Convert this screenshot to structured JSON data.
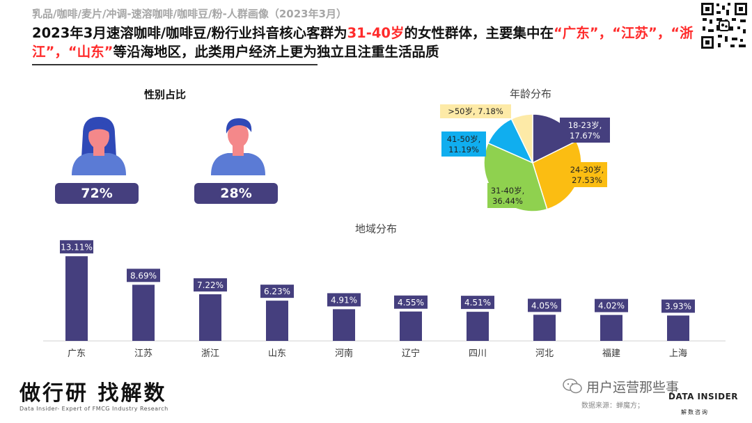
{
  "header": {
    "category_title": "乳品/咖啡/麦片/冲调-速溶咖啡/咖啡豆/粉-人群画像（2023年3月）",
    "headline_parts": [
      {
        "text": "2023年3月速溶咖啡/咖啡豆/粉行业抖音核心客群为",
        "highlight": false
      },
      {
        "text": "31-40岁",
        "highlight": true
      },
      {
        "text": "的女性群体，主要集中在",
        "highlight": false
      },
      {
        "text": "“广东”，",
        "highlight": true
      },
      {
        "text": "“江苏”，",
        "highlight": true
      },
      {
        "text": "“浙江”，",
        "highlight": true
      },
      {
        "text": "“山东”",
        "highlight": true
      },
      {
        "text": "等沿海地区，此类用户经济上更为独立且注重生活品质",
        "highlight": false
      }
    ]
  },
  "gender": {
    "title": "性别占比",
    "female_label": "72%",
    "male_label": "28%"
  },
  "colors": {
    "primary": "#453f7e",
    "highlight": "#ff2b2b",
    "pie_18_23": "#453f7e",
    "pie_24_30": "#fbbd12",
    "pie_31_40": "#8fd14f",
    "pie_41_50": "#10aeef",
    "pie_50plus": "#fdeaa7",
    "skin": "#f4888a",
    "female_hair": "#2f49b7",
    "male_hair": "#2f49b7",
    "shirt": "#5b7bd5"
  },
  "icons": [
    "female-avatar-icon",
    "male-avatar-icon",
    "qr-code-icon",
    "wechat-icon"
  ],
  "chart_data": [
    {
      "type": "pie",
      "title": "年龄分布",
      "slices": [
        {
          "label": "18-23岁",
          "value": 17.67,
          "display": "17.67%"
        },
        {
          "label": "24-30岁",
          "value": 27.53,
          "display": "27.53%"
        },
        {
          "label": "31-40岁",
          "value": 36.44,
          "display": "36.44%"
        },
        {
          "label": "41-50岁",
          "value": 11.19,
          "display": "11.19%"
        },
        {
          "label": ">50岁",
          "value": 7.18,
          "display": "7.18%"
        }
      ]
    },
    {
      "type": "bar",
      "title": "地域分布",
      "categories": [
        "广东",
        "江苏",
        "浙江",
        "山东",
        "河南",
        "辽宁",
        "四川",
        "河北",
        "福建",
        "上海"
      ],
      "values": [
        13.11,
        8.69,
        7.22,
        6.23,
        4.91,
        4.55,
        4.51,
        4.05,
        4.02,
        3.93
      ],
      "value_labels": [
        "13.11%",
        "8.69%",
        "7.22%",
        "6.23%",
        "4.91%",
        "4.55%",
        "4.51%",
        "4.05%",
        "4.02%",
        "3.93%"
      ],
      "ylim": [
        0,
        14
      ]
    }
  ],
  "footer": {
    "slogan": "做行研 找解数",
    "slogan_sub": "Data Insider- Expert of FMCG Industry Research",
    "wechat": "用户运营那些事",
    "source": "数据来源：蝉魔方；",
    "logo": "DATA INSIDER",
    "logo_sub": "解数咨询"
  }
}
